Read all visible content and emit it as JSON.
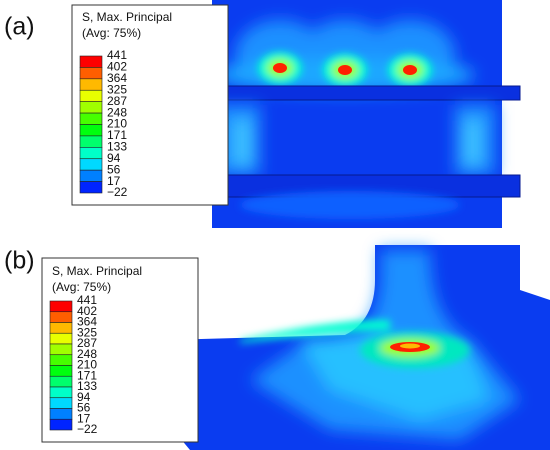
{
  "panels": [
    {
      "label": "(a)",
      "legend": {
        "title": [
          "S, Max. Principal",
          "(Avg: 75%)"
        ],
        "levels": [
          "441",
          "402",
          "364",
          "325",
          "287",
          "248",
          "210",
          "171",
          "133",
          "94",
          "56",
          "17",
          "−22"
        ]
      }
    },
    {
      "label": "(b)",
      "legend": {
        "title": [
          "S, Max. Principal",
          "(Avg: 75%)"
        ],
        "levels": [
          "441",
          "402",
          "364",
          "325",
          "287",
          "248",
          "210",
          "171",
          "133",
          "94",
          "56",
          "17",
          "−22"
        ]
      }
    }
  ]
}
